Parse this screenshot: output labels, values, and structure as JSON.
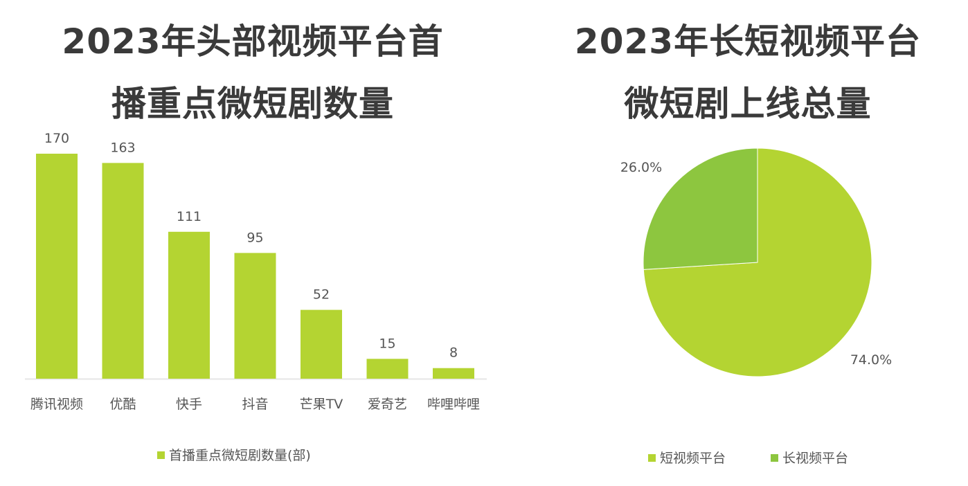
{
  "chart_data": [
    {
      "type": "bar",
      "title_lines": [
        "2023年头部视频平台首",
        "播重点微短剧数量"
      ],
      "categories": [
        "腾讯视频",
        "优酷",
        "快手",
        "抖音",
        "芒果TV",
        "爱奇艺",
        "哔哩哔哩"
      ],
      "values": [
        170,
        163,
        111,
        95,
        52,
        15,
        8
      ],
      "series_name": "首播重点微短剧数量(部)",
      "color": "#b4d432",
      "ylim": [
        0,
        170
      ],
      "legend": "bottom"
    },
    {
      "type": "pie",
      "title_lines": [
        "2023年长短视频平台",
        "微短剧上线总量"
      ],
      "slices": [
        {
          "label": "短视频平台",
          "value": 74.0,
          "text": "74.0%",
          "color": "#b4d432"
        },
        {
          "label": "长视频平台",
          "value": 26.0,
          "text": "26.0%",
          "color": "#8dc63f"
        }
      ],
      "legend": "bottom"
    }
  ]
}
